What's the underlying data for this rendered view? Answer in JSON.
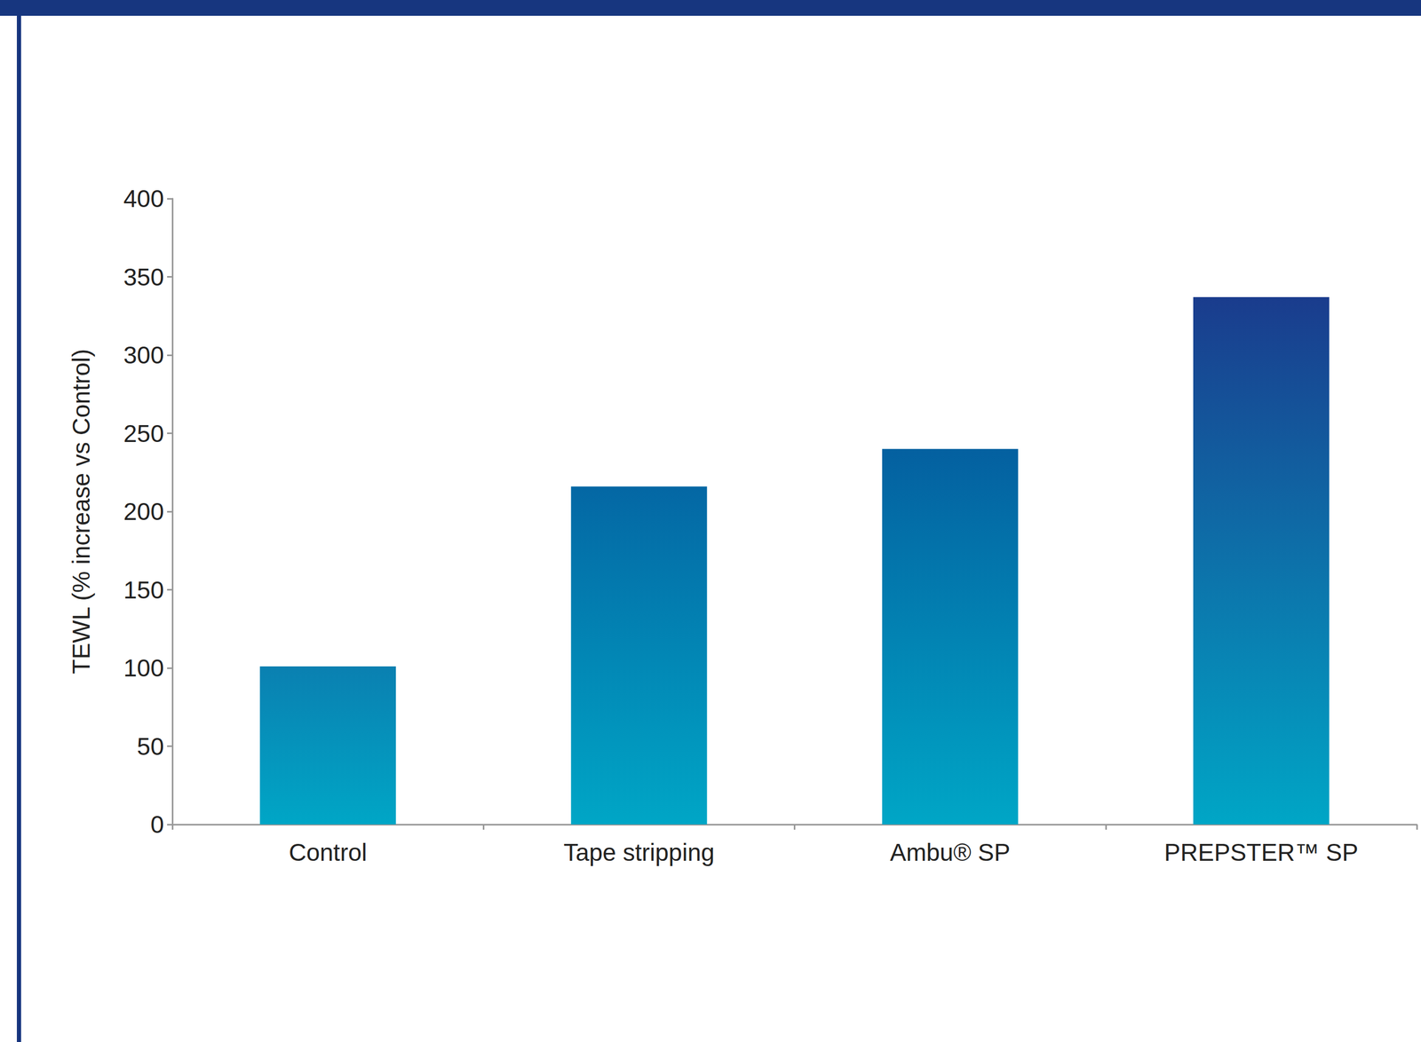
{
  "chart_data": {
    "type": "bar",
    "y_label": "TEWL (% increase vs Control)",
    "categories": [
      "Control",
      "Tape stripping",
      "Ambu® SP",
      "PREPSTER™ SP"
    ],
    "values": [
      101,
      216,
      240,
      337
    ],
    "colors": [
      "#0a80b1",
      "#0467a4",
      "#0460a0",
      "#1a3c8d"
    ],
    "ylim": [
      0,
      400
    ],
    "yticks": [
      0,
      50,
      100,
      150,
      200,
      250,
      300,
      350,
      400
    ],
    "grid": false
  }
}
